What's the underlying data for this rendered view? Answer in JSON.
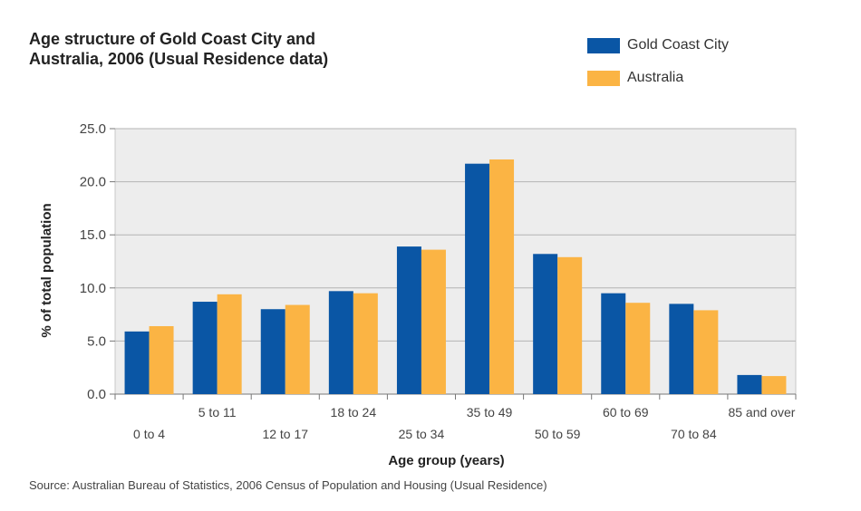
{
  "header": {
    "title_line1": "Age structure of Gold Coast City and",
    "title_line2": "Australia, 2006 (Usual Residence data)"
  },
  "legend": {
    "items": [
      {
        "label": "Gold Coast City",
        "color": "#0a56a5"
      },
      {
        "label": "Australia",
        "color": "#fbb444"
      }
    ]
  },
  "source": "Source: Australian Bureau of Statistics, 2006 Census  of Population and Housing (Usual Residence)",
  "chart_data": {
    "type": "bar",
    "title": "Age structure of Gold Coast City and Australia, 2006 (Usual Residence data)",
    "xlabel": "Age group (years)",
    "ylabel": "% of total population",
    "ylim": [
      0,
      25
    ],
    "yticks": [
      "0.0",
      "5.0",
      "10.0",
      "15.0",
      "20.0",
      "25.0"
    ],
    "grid": true,
    "legend_position": "top-right",
    "categories": [
      "0 to 4",
      "5 to 11",
      "12 to 17",
      "18 to 24",
      "25 to 34",
      "35 to 49",
      "50 to 59",
      "60 to 69",
      "70 to 84",
      "85 and over"
    ],
    "series": [
      {
        "name": "Gold Coast City",
        "color": "#0a56a5",
        "values": [
          5.9,
          8.7,
          8.0,
          9.7,
          13.9,
          21.7,
          13.2,
          9.5,
          8.5,
          1.8
        ]
      },
      {
        "name": "Australia",
        "color": "#fbb444",
        "values": [
          6.4,
          9.4,
          8.4,
          9.5,
          13.6,
          22.1,
          12.9,
          8.6,
          7.9,
          1.7
        ]
      }
    ]
  }
}
